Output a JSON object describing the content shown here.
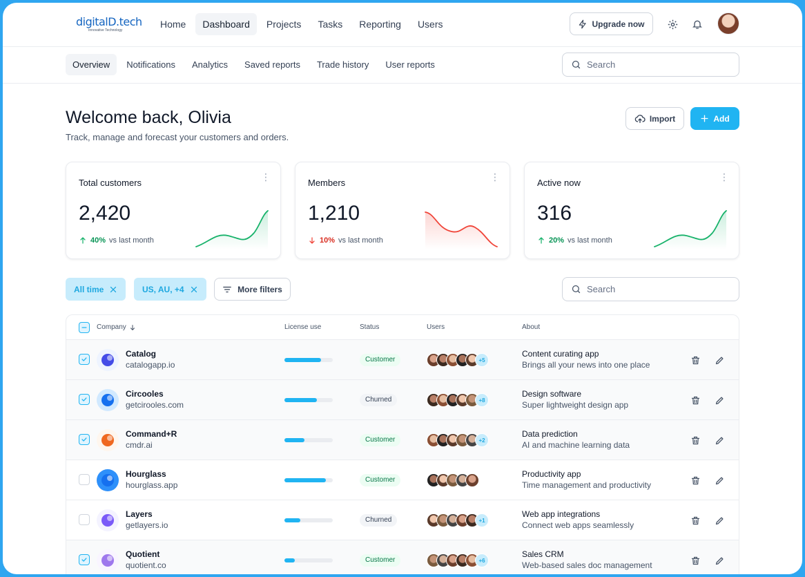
{
  "brand": {
    "name": "digitalD.tech",
    "tagline": "Innovative Technology"
  },
  "nav": [
    "Home",
    "Dashboard",
    "Projects",
    "Tasks",
    "Reporting",
    "Users"
  ],
  "nav_active": 1,
  "header": {
    "upgrade_label": "Upgrade now"
  },
  "subnav": [
    "Overview",
    "Notifications",
    "Analytics",
    "Saved reports",
    "Trade history",
    "User reports"
  ],
  "subnav_active": 0,
  "search": {
    "placeholder": "Search"
  },
  "welcome": {
    "title": "Welcome back, Olivia",
    "subtitle": "Track, manage and forecast your customers and orders."
  },
  "actions": {
    "import_label": "Import",
    "add_label": "Add"
  },
  "stats": [
    {
      "title": "Total customers",
      "value": "2,420",
      "change": "40%",
      "direction": "up",
      "label": "vs last month",
      "color": "#17b26a"
    },
    {
      "title": "Members",
      "value": "1,210",
      "change": "10%",
      "direction": "down",
      "label": "vs last month",
      "color": "#f04438"
    },
    {
      "title": "Active now",
      "value": "316",
      "change": "20%",
      "direction": "up",
      "label": "vs last month",
      "color": "#17b26a"
    }
  ],
  "filters": {
    "chips": [
      "All time",
      "US, AU, +4"
    ],
    "more_label": "More filters",
    "search_placeholder": "Search"
  },
  "table": {
    "columns": {
      "company": "Company",
      "license": "License use",
      "status": "Status",
      "users": "Users",
      "about": "About"
    },
    "rows": [
      {
        "name": "Catalog",
        "site": "catalogapp.io",
        "license": 0.75,
        "status": "Customer",
        "extra": "+5",
        "avatars": 5,
        "about_title": "Content curating app",
        "about_sub": "Brings all your news into one place",
        "checked": true,
        "logo_color": "#444ce7",
        "logo_bg": "#eef4ff"
      },
      {
        "name": "Circooles",
        "site": "getcirooles.com",
        "license": 0.67,
        "status": "Churned",
        "extra": "+8",
        "avatars": 5,
        "about_title": "Design software",
        "about_sub": "Super lightweight design app",
        "checked": true,
        "logo_color": "#1570ef",
        "logo_bg": "#d1e9ff"
      },
      {
        "name": "Command+R",
        "site": "cmdr.ai",
        "license": 0.42,
        "status": "Customer",
        "extra": "+2",
        "avatars": 5,
        "about_title": "Data prediction",
        "about_sub": "AI and machine learning data",
        "checked": true,
        "logo_color": "#ef6820",
        "logo_bg": "#fef6ee"
      },
      {
        "name": "Hourglass",
        "site": "hourglass.app",
        "license": 0.85,
        "status": "Customer",
        "extra": "",
        "avatars": 5,
        "about_title": "Productivity app",
        "about_sub": "Time management and productivity",
        "checked": false,
        "logo_color": "#1570ef",
        "logo_bg": "#2e90fa"
      },
      {
        "name": "Layers",
        "site": "getlayers.io",
        "license": 0.33,
        "status": "Churned",
        "extra": "+1",
        "avatars": 5,
        "about_title": "Web app integrations",
        "about_sub": "Connect web apps seamlessly",
        "checked": false,
        "logo_color": "#7a5af8",
        "logo_bg": "#f4f3ff"
      },
      {
        "name": "Quotient",
        "site": "quotient.co",
        "license": 0.22,
        "status": "Customer",
        "extra": "+6",
        "avatars": 5,
        "about_title": "Sales CRM",
        "about_sub": "Web-based sales doc management",
        "checked": true,
        "logo_color": "#9e77ed",
        "logo_bg": "#f9f5ff"
      }
    ]
  }
}
